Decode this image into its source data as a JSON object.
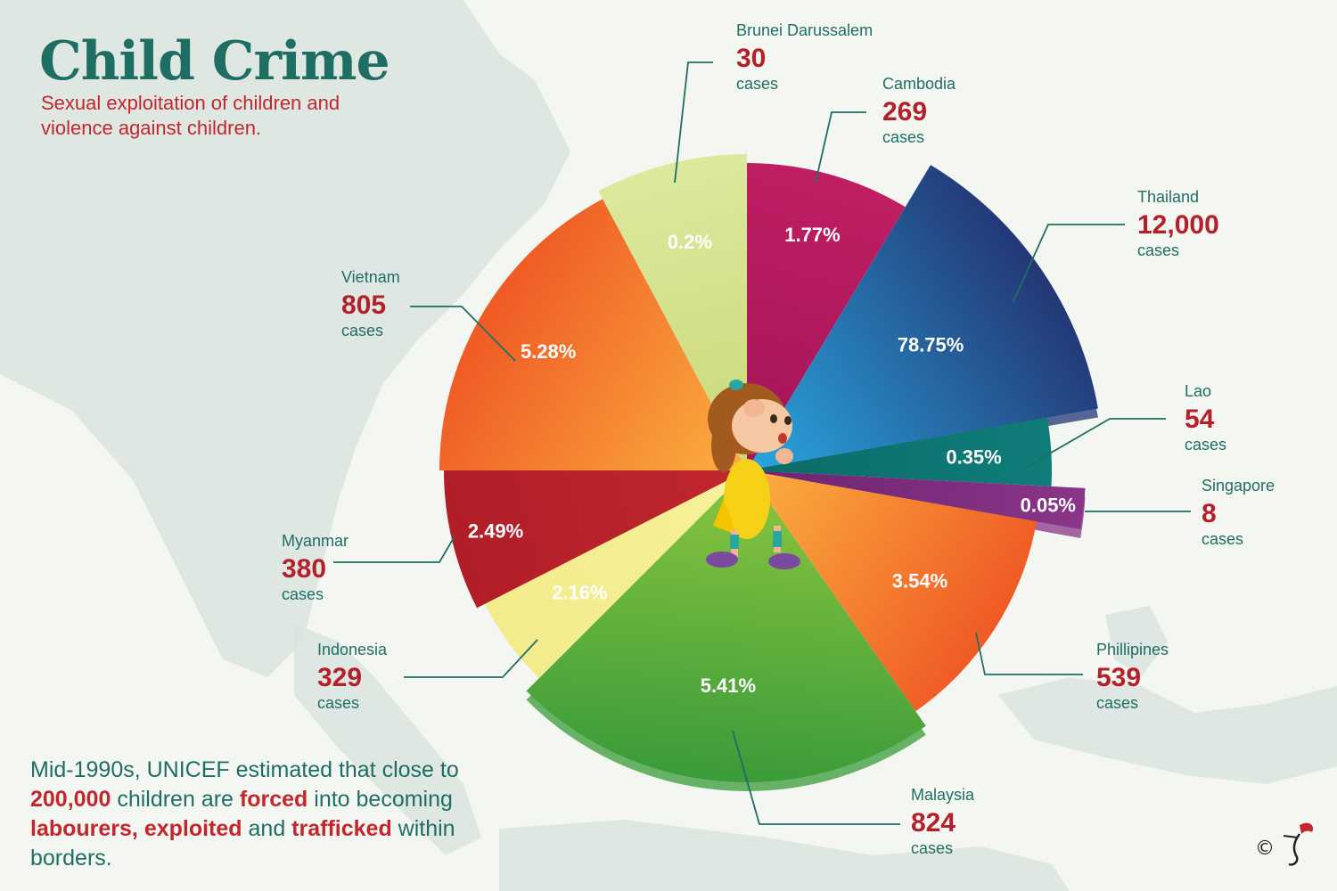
{
  "title": "Child Crime",
  "subtitle": "Sexual exploitation of children and violence against children.",
  "footnote": {
    "p1": "Mid-1990s, UNICEF estimated that close to ",
    "h1": "200,000",
    "p2": " children are ",
    "h2": "forced",
    "p3": " into becoming ",
    "h3": "labourers, exploited",
    "p4": " and ",
    "h4": "trafficked",
    "p5": " within borders."
  },
  "copyright": "©",
  "colors": {
    "title": "#1f6e64",
    "highlight": "#c1272d",
    "leader": "#1f6e64"
  },
  "chart_data": {
    "type": "pie",
    "title": "Child Crime",
    "unit": "cases",
    "slices": [
      {
        "label": "Brunei Darussalem",
        "count": "30",
        "value": 0.2,
        "percent": "0.2%",
        "colors": [
          "#c9d879",
          "#dde99c"
        ],
        "explode": 0
      },
      {
        "label": "Cambodia",
        "count": "269",
        "value": 1.77,
        "percent": "1.77%",
        "colors": [
          "#a3145a",
          "#c01e62"
        ],
        "explode": 0
      },
      {
        "label": "Thailand",
        "count": "12,000",
        "value": 78.75,
        "percent": "78.75%",
        "colors": [
          "#29a8e0",
          "#233775"
        ],
        "explode": 1
      },
      {
        "label": "Lao",
        "count": "54",
        "value": 0.35,
        "percent": "0.35%",
        "colors": [
          "#0c6b68",
          "#0f7d79"
        ],
        "explode": 0
      },
      {
        "label": "Singapore",
        "count": "8",
        "value": 0.05,
        "percent": "0.05%",
        "colors": [
          "#6d2470",
          "#8a3588"
        ],
        "explode": 1
      },
      {
        "label": "Phillipines",
        "count": "539",
        "value": 3.54,
        "percent": "3.54%",
        "colors": [
          "#fbb040",
          "#ef5a24"
        ],
        "explode": 0
      },
      {
        "label": "Malaysia",
        "count": "824",
        "value": 5.41,
        "percent": "5.41%",
        "colors": [
          "#8cc63f",
          "#3a9b3a"
        ],
        "explode": 1
      },
      {
        "label": "Indonesia",
        "count": "329",
        "value": 2.16,
        "percent": "2.16%",
        "colors": [
          "#f6f09a",
          "#f3ec8c"
        ],
        "explode": 0
      },
      {
        "label": "Myanmar",
        "count": "380",
        "value": 2.49,
        "percent": "2.49%",
        "colors": [
          "#c1272d",
          "#b01e28"
        ],
        "explode": 0
      },
      {
        "label": "Vietnam",
        "count": "805",
        "value": 5.28,
        "percent": "5.28%",
        "colors": [
          "#fbb040",
          "#ef5a24"
        ],
        "explode": 0
      }
    ]
  }
}
